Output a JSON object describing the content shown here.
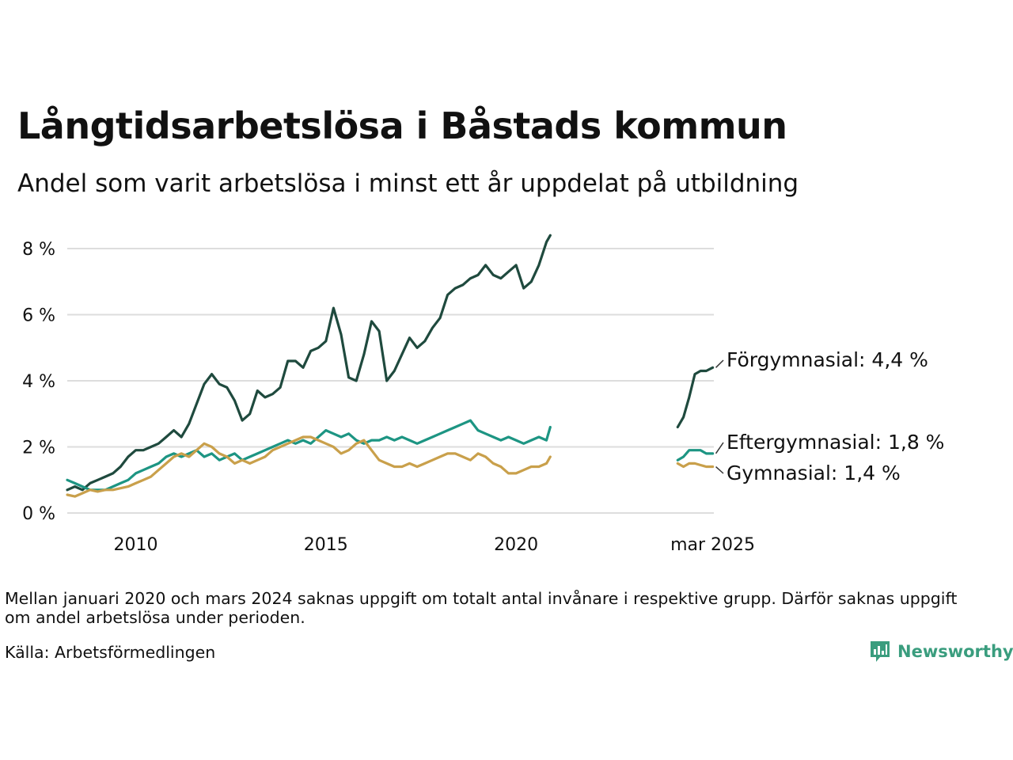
{
  "title": "Långtidsarbetslösa i Båstads kommun",
  "subtitle": "Andel som varit arbetslösa i minst ett år uppdelat på utbildning",
  "note": "Mellan januari 2020 och mars 2024 saknas uppgift om totalt antal invånare i respektive grupp. Därför saknas uppgift om andel arbetslösa under perioden.",
  "source": "Källa: Arbetsförmedlingen",
  "logo": {
    "text": "Newsworthy",
    "icon": "newsworthy-bar-chart-icon"
  },
  "colors": {
    "forgymnasial": "#1f4a3e",
    "eftergymnasial": "#1d9583",
    "gymnasial": "#c9a04b",
    "grid": "#dddddd",
    "logo": "#3a9d7e"
  },
  "chart_data": {
    "type": "line",
    "xlabel": "",
    "ylabel": "",
    "ylim": [
      0,
      8.5
    ],
    "y_ticks": [
      "0 %",
      "2 %",
      "4 %",
      "6 %",
      "8 %"
    ],
    "y_tick_values": [
      0,
      2,
      4,
      6,
      8
    ],
    "x_ticks": [
      "2010",
      "2015",
      "2020",
      "mar 2025"
    ],
    "x_tick_values": [
      2010,
      2015,
      2020,
      2025.17
    ],
    "grid": true,
    "legend": "direct labels at right end of lines",
    "series": [
      {
        "name": "Förgymnasial",
        "end_label": "Förgymnasial: 4,4 %",
        "segments": [
          {
            "x": [
              2008.2,
              2008.4,
              2008.6,
              2008.8,
              2009.0,
              2009.2,
              2009.4,
              2009.6,
              2009.8,
              2010.0,
              2010.2,
              2010.4,
              2010.6,
              2010.8,
              2011.0,
              2011.2,
              2011.4,
              2011.6,
              2011.8,
              2012.0,
              2012.2,
              2012.4,
              2012.6,
              2012.8,
              2013.0,
              2013.2,
              2013.4,
              2013.6,
              2013.8,
              2014.0,
              2014.2,
              2014.4,
              2014.6,
              2014.8,
              2015.0,
              2015.2,
              2015.4,
              2015.6,
              2015.8,
              2016.0,
              2016.2,
              2016.4,
              2016.6,
              2016.8,
              2017.0,
              2017.2,
              2017.4,
              2017.6,
              2017.8,
              2018.0,
              2018.2,
              2018.4,
              2018.6,
              2018.8,
              2019.0,
              2019.2,
              2019.4,
              2019.6,
              2019.8,
              2020.0,
              2020.2,
              2020.4,
              2020.6,
              2020.8,
              2020.9
            ],
            "y": [
              0.7,
              0.8,
              0.7,
              0.9,
              1.0,
              1.1,
              1.2,
              1.4,
              1.7,
              1.9,
              1.9,
              2.0,
              2.1,
              2.3,
              2.5,
              2.3,
              2.7,
              3.3,
              3.9,
              4.2,
              3.9,
              3.8,
              3.4,
              2.8,
              3.0,
              3.7,
              3.5,
              3.6,
              3.8,
              4.6,
              4.6,
              4.4,
              4.9,
              5.0,
              5.2,
              6.2,
              5.4,
              4.1,
              4.0,
              4.8,
              5.8,
              5.5,
              4.0,
              4.3,
              4.8,
              5.3,
              5.0,
              5.2,
              5.6,
              5.9,
              6.6,
              6.8,
              6.9,
              7.1,
              7.2,
              7.5,
              7.2,
              7.1,
              7.3,
              7.5,
              6.8,
              7.0,
              7.5,
              8.2,
              8.4
            ]
          },
          {
            "x": [
              2024.25,
              2024.4,
              2024.55,
              2024.7,
              2024.85,
              2025.0,
              2025.17
            ],
            "y": [
              2.6,
              2.9,
              3.5,
              4.2,
              4.3,
              4.3,
              4.4
            ]
          }
        ]
      },
      {
        "name": "Eftergymnasial",
        "end_label": "Eftergymnasial: 1,8 %",
        "segments": [
          {
            "x": [
              2008.2,
              2008.4,
              2008.6,
              2008.8,
              2009.0,
              2009.2,
              2009.4,
              2009.6,
              2009.8,
              2010.0,
              2010.2,
              2010.4,
              2010.6,
              2010.8,
              2011.0,
              2011.2,
              2011.4,
              2011.6,
              2011.8,
              2012.0,
              2012.2,
              2012.4,
              2012.6,
              2012.8,
              2013.0,
              2013.2,
              2013.4,
              2013.6,
              2013.8,
              2014.0,
              2014.2,
              2014.4,
              2014.6,
              2014.8,
              2015.0,
              2015.2,
              2015.4,
              2015.6,
              2015.8,
              2016.0,
              2016.2,
              2016.4,
              2016.6,
              2016.8,
              2017.0,
              2017.2,
              2017.4,
              2017.6,
              2017.8,
              2018.0,
              2018.2,
              2018.4,
              2018.6,
              2018.8,
              2019.0,
              2019.2,
              2019.4,
              2019.6,
              2019.8,
              2020.0,
              2020.2,
              2020.4,
              2020.6,
              2020.8,
              2020.9
            ],
            "y": [
              1.0,
              0.9,
              0.8,
              0.7,
              0.7,
              0.7,
              0.8,
              0.9,
              1.0,
              1.2,
              1.3,
              1.4,
              1.5,
              1.7,
              1.8,
              1.7,
              1.8,
              1.9,
              1.7,
              1.8,
              1.6,
              1.7,
              1.8,
              1.6,
              1.7,
              1.8,
              1.9,
              2.0,
              2.1,
              2.2,
              2.1,
              2.2,
              2.1,
              2.3,
              2.5,
              2.4,
              2.3,
              2.4,
              2.2,
              2.1,
              2.2,
              2.2,
              2.3,
              2.2,
              2.3,
              2.2,
              2.1,
              2.2,
              2.3,
              2.4,
              2.5,
              2.6,
              2.7,
              2.8,
              2.5,
              2.4,
              2.3,
              2.2,
              2.3,
              2.2,
              2.1,
              2.2,
              2.3,
              2.2,
              2.6
            ]
          },
          {
            "x": [
              2024.25,
              2024.4,
              2024.55,
              2024.7,
              2024.85,
              2025.0,
              2025.17
            ],
            "y": [
              1.6,
              1.7,
              1.9,
              1.9,
              1.9,
              1.8,
              1.8
            ]
          }
        ]
      },
      {
        "name": "Gymnasial",
        "end_label": "Gymnasial: 1,4 %",
        "segments": [
          {
            "x": [
              2008.2,
              2008.4,
              2008.6,
              2008.8,
              2009.0,
              2009.2,
              2009.4,
              2009.6,
              2009.8,
              2010.0,
              2010.2,
              2010.4,
              2010.6,
              2010.8,
              2011.0,
              2011.2,
              2011.4,
              2011.6,
              2011.8,
              2012.0,
              2012.2,
              2012.4,
              2012.6,
              2012.8,
              2013.0,
              2013.2,
              2013.4,
              2013.6,
              2013.8,
              2014.0,
              2014.2,
              2014.4,
              2014.6,
              2014.8,
              2015.0,
              2015.2,
              2015.4,
              2015.6,
              2015.8,
              2016.0,
              2016.2,
              2016.4,
              2016.6,
              2016.8,
              2017.0,
              2017.2,
              2017.4,
              2017.6,
              2017.8,
              2018.0,
              2018.2,
              2018.4,
              2018.6,
              2018.8,
              2019.0,
              2019.2,
              2019.4,
              2019.6,
              2019.8,
              2020.0,
              2020.2,
              2020.4,
              2020.6,
              2020.8,
              2020.9
            ],
            "y": [
              0.55,
              0.5,
              0.6,
              0.7,
              0.65,
              0.7,
              0.7,
              0.75,
              0.8,
              0.9,
              1.0,
              1.1,
              1.3,
              1.5,
              1.7,
              1.8,
              1.7,
              1.9,
              2.1,
              2.0,
              1.8,
              1.7,
              1.5,
              1.6,
              1.5,
              1.6,
              1.7,
              1.9,
              2.0,
              2.1,
              2.2,
              2.3,
              2.3,
              2.2,
              2.1,
              2.0,
              1.8,
              1.9,
              2.1,
              2.2,
              1.9,
              1.6,
              1.5,
              1.4,
              1.4,
              1.5,
              1.4,
              1.5,
              1.6,
              1.7,
              1.8,
              1.8,
              1.7,
              1.6,
              1.8,
              1.7,
              1.5,
              1.4,
              1.2,
              1.2,
              1.3,
              1.4,
              1.4,
              1.5,
              1.7
            ]
          },
          {
            "x": [
              2024.25,
              2024.4,
              2024.55,
              2024.7,
              2024.85,
              2025.0,
              2025.17
            ],
            "y": [
              1.5,
              1.4,
              1.5,
              1.5,
              1.45,
              1.4,
              1.4
            ]
          }
        ]
      }
    ]
  }
}
